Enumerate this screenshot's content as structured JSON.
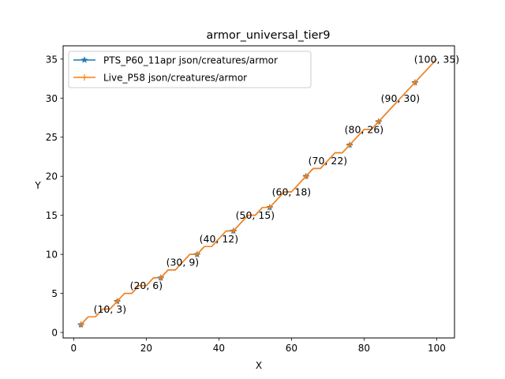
{
  "chart_data": {
    "type": "line",
    "title": "armor_universal_tier9",
    "xlabel": "X",
    "ylabel": "Y",
    "xlim": [
      -2.9,
      104.9
    ],
    "ylim": [
      -0.7,
      36.7
    ],
    "xticks": [
      0,
      20,
      40,
      60,
      80,
      100
    ],
    "yticks": [
      0,
      5,
      10,
      15,
      20,
      25,
      30,
      35
    ],
    "grid": false,
    "legend_position": "upper-left",
    "series": [
      {
        "name": "PTS_P60_11apr json/creatures/armor",
        "color": "#1f77b4",
        "marker": "star",
        "x": [
          2,
          4,
          6,
          8,
          10,
          12,
          14,
          16,
          18,
          20,
          22,
          24,
          26,
          28,
          30,
          32,
          34,
          36,
          38,
          40,
          42,
          44,
          46,
          48,
          50,
          52,
          54,
          56,
          58,
          60,
          62,
          64,
          66,
          68,
          70,
          72,
          74,
          76,
          78,
          80,
          82,
          84,
          86,
          88,
          90,
          92,
          94,
          96,
          98,
          100
        ],
        "y": [
          1,
          2,
          2,
          3,
          3,
          4,
          5,
          5,
          6,
          6,
          7,
          7,
          8,
          8,
          9,
          10,
          10,
          11,
          11,
          12,
          13,
          13,
          14,
          15,
          15,
          16,
          16,
          17,
          18,
          18,
          19,
          20,
          21,
          21,
          22,
          23,
          23,
          24,
          25,
          26,
          26,
          27,
          28,
          29,
          30,
          31,
          32,
          33,
          34,
          35
        ],
        "marker_x": [
          2,
          12,
          24,
          34,
          44,
          54,
          64,
          76,
          84,
          94
        ]
      },
      {
        "name": "Live_P58 json/creatures/armor",
        "color": "#ff7f0e",
        "marker": "plus",
        "x": [
          2,
          4,
          6,
          8,
          10,
          12,
          14,
          16,
          18,
          20,
          22,
          24,
          26,
          28,
          30,
          32,
          34,
          36,
          38,
          40,
          42,
          44,
          46,
          48,
          50,
          52,
          54,
          56,
          58,
          60,
          62,
          64,
          66,
          68,
          70,
          72,
          74,
          76,
          78,
          80,
          82,
          84,
          86,
          88,
          90,
          92,
          94,
          96,
          98,
          100
        ],
        "y": [
          1,
          2,
          2,
          3,
          3,
          4,
          5,
          5,
          6,
          6,
          7,
          7,
          8,
          8,
          9,
          10,
          10,
          11,
          11,
          12,
          13,
          13,
          14,
          15,
          15,
          16,
          16,
          17,
          18,
          18,
          19,
          20,
          21,
          21,
          22,
          23,
          23,
          24,
          25,
          26,
          26,
          27,
          28,
          29,
          30,
          31,
          32,
          33,
          34,
          35
        ],
        "marker_x": [
          2,
          12,
          24,
          34,
          44,
          54,
          64,
          76,
          84,
          94
        ]
      }
    ],
    "annotations": [
      {
        "x": 10,
        "y": 3,
        "text": "(10, 3)"
      },
      {
        "x": 20,
        "y": 6,
        "text": "(20, 6)"
      },
      {
        "x": 30,
        "y": 9,
        "text": "(30, 9)"
      },
      {
        "x": 40,
        "y": 12,
        "text": "(40, 12)"
      },
      {
        "x": 50,
        "y": 15,
        "text": "(50, 15)"
      },
      {
        "x": 60,
        "y": 18,
        "text": "(60, 18)"
      },
      {
        "x": 70,
        "y": 22,
        "text": "(70, 22)"
      },
      {
        "x": 80,
        "y": 26,
        "text": "(80, 26)"
      },
      {
        "x": 90,
        "y": 30,
        "text": "(90, 30)"
      },
      {
        "x": 100,
        "y": 35,
        "text": "(100, 35)"
      }
    ]
  }
}
